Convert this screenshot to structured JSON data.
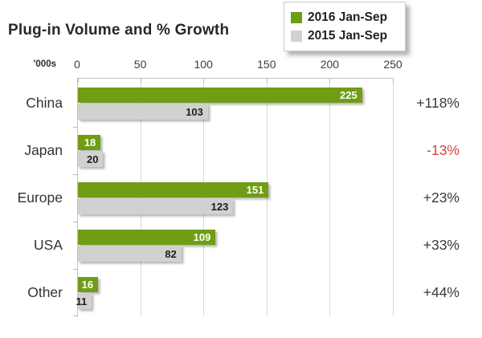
{
  "title": "Plug-in Volume and % Growth",
  "unit_label": "'000s",
  "legend": [
    {
      "label": "2016 Jan-Sep",
      "color": "#6f9d15"
    },
    {
      "label": "2015 Jan-Sep",
      "color": "#d1d1d1"
    }
  ],
  "colors": {
    "green_bar": "#6f9d15",
    "gray_bar": "#d1d1d1",
    "green_bar_text": "#ffffff",
    "gray_bar_text": "#1d1d1d",
    "growth_positive": "#3a3a3a",
    "growth_negative": "#d8413e",
    "gridline": "#d8d8d8",
    "axis_line": "#c2c2c2"
  },
  "chart_data": {
    "type": "bar",
    "orientation": "horizontal",
    "title": "Plug-in Volume and % Growth",
    "unit": "'000s",
    "categories": [
      "China",
      "Japan",
      "Europe",
      "USA",
      "Other"
    ],
    "series": [
      {
        "name": "2016 Jan-Sep",
        "color": "#6f9d15",
        "values": [
          225,
          18,
          151,
          109,
          16
        ]
      },
      {
        "name": "2015 Jan-Sep",
        "color": "#d1d1d1",
        "values": [
          103,
          20,
          123,
          82,
          11
        ]
      }
    ],
    "growth_labels": [
      "+118%",
      "-13%",
      "+23%",
      "+33%",
      "+44%"
    ],
    "growth_label_colors": [
      "#3a3a3a",
      "#d8413e",
      "#3a3a3a",
      "#3a3a3a",
      "#3a3a3a"
    ],
    "xlim": [
      0,
      250
    ],
    "x_ticks": [
      0,
      50,
      100,
      150,
      200,
      250
    ],
    "grid": true,
    "legend_position": "top-right"
  }
}
